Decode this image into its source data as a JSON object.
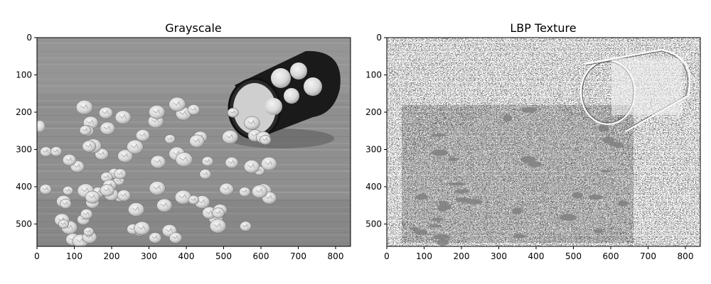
{
  "figure": {
    "panels": [
      {
        "title": "Grayscale",
        "image": "grayscale-photo",
        "x_ticks": [
          "0",
          "100",
          "200",
          "300",
          "400",
          "500",
          "600",
          "700",
          "800"
        ],
        "y_ticks": [
          "0",
          "100",
          "200",
          "300",
          "400",
          "500"
        ]
      },
      {
        "title": "LBP Texture",
        "image": "lbp-texture-map",
        "x_ticks": [
          "0",
          "100",
          "200",
          "300",
          "400",
          "500",
          "600",
          "700",
          "800"
        ],
        "y_ticks": [
          "0",
          "100",
          "200",
          "300",
          "400",
          "500"
        ]
      }
    ]
  },
  "image_content": {
    "subject": "crumpled white paper balls spilling from a tipped black mesh waste bin onto a wooden floor",
    "image_width_units": 840,
    "image_height_units": 560
  }
}
